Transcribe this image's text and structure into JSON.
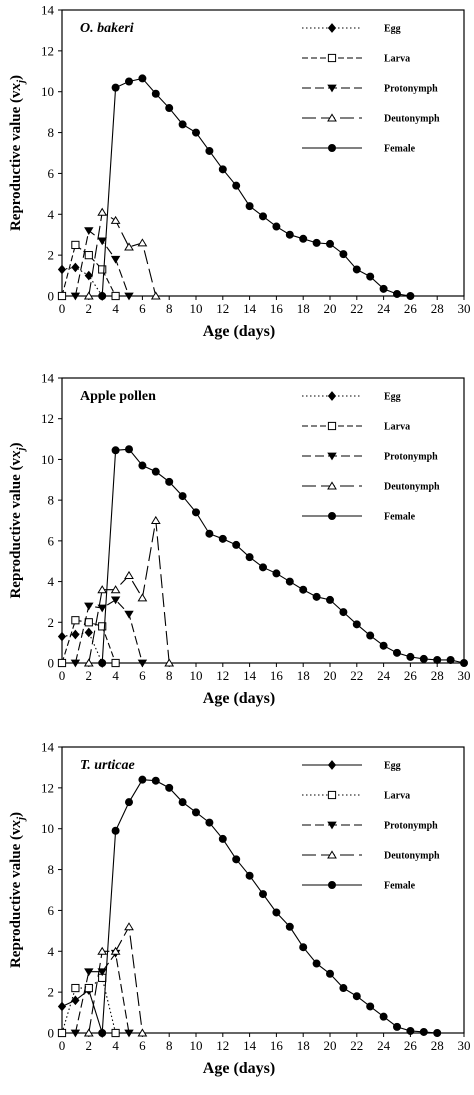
{
  "chart_data": [
    {
      "type": "line",
      "title": "O. bakeri",
      "title_italic": true,
      "xlabel": "Age (days)",
      "ylabel": "Reproductive value (v",
      "ylabel_sub": "xj",
      "ylabel_close": ")",
      "xlim": [
        0,
        30
      ],
      "ylim": [
        0,
        14
      ],
      "x_ticks": [
        0,
        2,
        4,
        6,
        8,
        10,
        12,
        14,
        16,
        18,
        20,
        22,
        24,
        26,
        28,
        30
      ],
      "y_ticks": [
        0,
        2,
        4,
        6,
        8,
        10,
        12,
        14
      ],
      "legend_position": "top-right",
      "series": [
        {
          "name": "Egg",
          "marker": "diamond",
          "dash": "dotted",
          "x": [
            0,
            1,
            2,
            3
          ],
          "y": [
            1.3,
            1.4,
            1.0,
            0
          ]
        },
        {
          "name": "Larva",
          "marker": "square-open",
          "dash": "short-dash",
          "x": [
            0,
            1,
            2,
            3,
            4
          ],
          "y": [
            0,
            2.5,
            2.0,
            1.3,
            0
          ]
        },
        {
          "name": "Protonymph",
          "marker": "triangle-down",
          "dash": "dash",
          "x": [
            1,
            2,
            3,
            4,
            5
          ],
          "y": [
            0,
            3.2,
            2.7,
            1.8,
            0
          ]
        },
        {
          "name": "Deutonymph",
          "marker": "triangle-up-open",
          "dash": "long-dash",
          "x": [
            2,
            3,
            4,
            5,
            6,
            7
          ],
          "y": [
            0,
            4.1,
            3.7,
            2.4,
            2.6,
            0
          ]
        },
        {
          "name": "Female",
          "marker": "circle",
          "dash": "solid",
          "x": [
            3,
            4,
            5,
            6,
            7,
            8,
            9,
            10,
            11,
            12,
            13,
            14,
            15,
            16,
            17,
            18,
            19,
            20,
            21,
            22,
            23,
            24,
            25,
            26
          ],
          "y": [
            0,
            10.2,
            10.5,
            10.65,
            9.9,
            9.2,
            8.4,
            8.0,
            7.1,
            6.2,
            5.4,
            4.4,
            3.9,
            3.4,
            3.0,
            2.8,
            2.6,
            2.55,
            2.05,
            1.3,
            0.95,
            0.35,
            0.1,
            0.0
          ]
        }
      ]
    },
    {
      "type": "line",
      "title": "Apple pollen",
      "title_italic": false,
      "xlabel": "Age (days)",
      "ylabel": "Reproductive value (v",
      "ylabel_sub": "xj",
      "ylabel_close": ")",
      "xlim": [
        0,
        30
      ],
      "ylim": [
        0,
        14
      ],
      "x_ticks": [
        0,
        2,
        4,
        6,
        8,
        10,
        12,
        14,
        16,
        18,
        20,
        22,
        24,
        26,
        28,
        30
      ],
      "y_ticks": [
        0,
        2,
        4,
        6,
        8,
        10,
        12,
        14
      ],
      "legend_position": "top-right",
      "series": [
        {
          "name": "Egg",
          "marker": "diamond",
          "dash": "dotted",
          "x": [
            0,
            1,
            2,
            3
          ],
          "y": [
            1.3,
            1.4,
            1.5,
            0
          ]
        },
        {
          "name": "Larva",
          "marker": "square-open",
          "dash": "short-dash",
          "x": [
            0,
            1,
            2,
            3,
            4
          ],
          "y": [
            0,
            2.1,
            2.0,
            1.8,
            0
          ]
        },
        {
          "name": "Protonymph",
          "marker": "triangle-down",
          "dash": "dash",
          "x": [
            1,
            2,
            3,
            4,
            5,
            6
          ],
          "y": [
            0,
            2.8,
            2.7,
            3.1,
            2.4,
            0
          ]
        },
        {
          "name": "Deutonymph",
          "marker": "triangle-up-open",
          "dash": "long-dash",
          "x": [
            2,
            3,
            4,
            5,
            6,
            7,
            8
          ],
          "y": [
            0,
            3.6,
            3.6,
            4.3,
            3.2,
            7.0,
            0
          ]
        },
        {
          "name": "Female",
          "marker": "circle",
          "dash": "solid",
          "x": [
            3,
            4,
            5,
            6,
            7,
            8,
            9,
            10,
            11,
            12,
            13,
            14,
            15,
            16,
            17,
            18,
            19,
            20,
            21,
            22,
            23,
            24,
            25,
            26,
            27,
            28,
            29,
            30
          ],
          "y": [
            0,
            10.45,
            10.5,
            9.7,
            9.4,
            8.9,
            8.2,
            7.4,
            6.35,
            6.1,
            5.8,
            5.2,
            4.7,
            4.4,
            4.0,
            3.6,
            3.25,
            3.1,
            2.5,
            1.9,
            1.35,
            0.85,
            0.5,
            0.3,
            0.2,
            0.15,
            0.15,
            0.0
          ]
        }
      ]
    },
    {
      "type": "line",
      "title": "T. urticae",
      "title_italic": true,
      "xlabel": "Age (days)",
      "ylabel": "Reproductive value (v",
      "ylabel_sub": "xj",
      "ylabel_close": ")",
      "xlim": [
        0,
        30
      ],
      "ylim": [
        0,
        14
      ],
      "x_ticks": [
        0,
        2,
        4,
        6,
        8,
        10,
        12,
        14,
        16,
        18,
        20,
        22,
        24,
        26,
        28,
        30
      ],
      "y_ticks": [
        0,
        2,
        4,
        6,
        8,
        10,
        12,
        14
      ],
      "legend_position": "top-right",
      "series": [
        {
          "name": "Egg",
          "marker": "diamond",
          "dash": "solid",
          "x": [
            0,
            1,
            2,
            3
          ],
          "y": [
            1.3,
            1.6,
            2.1,
            0
          ]
        },
        {
          "name": "Larva",
          "marker": "square-open",
          "dash": "dotted",
          "x": [
            0,
            1,
            2,
            3,
            4
          ],
          "y": [
            0,
            2.2,
            2.2,
            2.7,
            0
          ]
        },
        {
          "name": "Protonymph",
          "marker": "triangle-down",
          "dash": "dash",
          "x": [
            1,
            2,
            3,
            4,
            5
          ],
          "y": [
            0,
            3.0,
            3.0,
            3.9,
            0
          ]
        },
        {
          "name": "Deutonymph",
          "marker": "triangle-up-open",
          "dash": "long-dash",
          "x": [
            2,
            3,
            4,
            5,
            6
          ],
          "y": [
            0,
            4.0,
            4.0,
            5.2,
            0
          ]
        },
        {
          "name": "Female",
          "marker": "circle",
          "dash": "solid",
          "x": [
            3,
            4,
            5,
            6,
            7,
            8,
            9,
            10,
            11,
            12,
            13,
            14,
            15,
            16,
            17,
            18,
            19,
            20,
            21,
            22,
            23,
            24,
            25,
            26,
            27,
            28
          ],
          "y": [
            0,
            9.9,
            11.3,
            12.4,
            12.35,
            12.0,
            11.3,
            10.8,
            10.3,
            9.5,
            8.5,
            7.7,
            6.8,
            5.9,
            5.2,
            4.2,
            3.4,
            2.9,
            2.2,
            1.8,
            1.3,
            0.8,
            0.3,
            0.1,
            0.05,
            0.0
          ]
        }
      ]
    }
  ]
}
